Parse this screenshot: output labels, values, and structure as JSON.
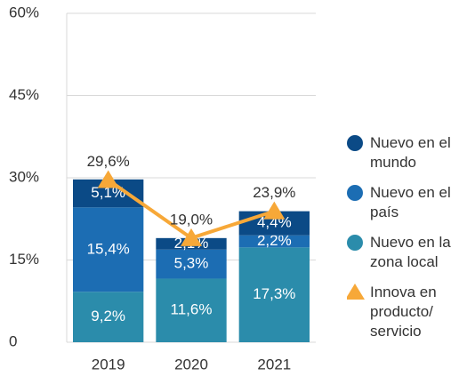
{
  "chart_data": {
    "type": "bar",
    "stacked": true,
    "categories": [
      "2019",
      "2020",
      "2021"
    ],
    "series": [
      {
        "name": "Nuevo en la zona local",
        "color": "#2b8cab",
        "values": [
          9.2,
          11.6,
          17.3
        ],
        "value_labels": [
          "9,2%",
          "11,6%",
          "17,3%"
        ]
      },
      {
        "name": "Nuevo en el país",
        "color": "#1c6db3",
        "values": [
          15.4,
          5.3,
          2.2
        ],
        "value_labels": [
          "15,4%",
          "5,3%",
          "2,2%"
        ]
      },
      {
        "name": "Nuevo en el mundo",
        "color": "#0b4a86",
        "values": [
          5.1,
          2.1,
          4.4
        ],
        "value_labels": [
          "5,1%",
          "2,1%",
          "4,4%"
        ]
      },
      {
        "name": "Innova en producto/ servicio",
        "type": "line",
        "color": "#f7a838",
        "values": [
          29.6,
          19.0,
          23.9
        ],
        "value_labels": [
          "29,6%",
          "19,0%",
          "23,9%"
        ]
      }
    ],
    "ylim": [
      0,
      60
    ],
    "yticks": [
      0,
      {
        "value": 15,
        "label": "15%"
      },
      {
        "value": 30,
        "label": "30%"
      },
      {
        "value": 45,
        "label": "45%"
      },
      {
        "value": 60,
        "label": "60%"
      }
    ],
    "grid": true,
    "legend": "right"
  }
}
